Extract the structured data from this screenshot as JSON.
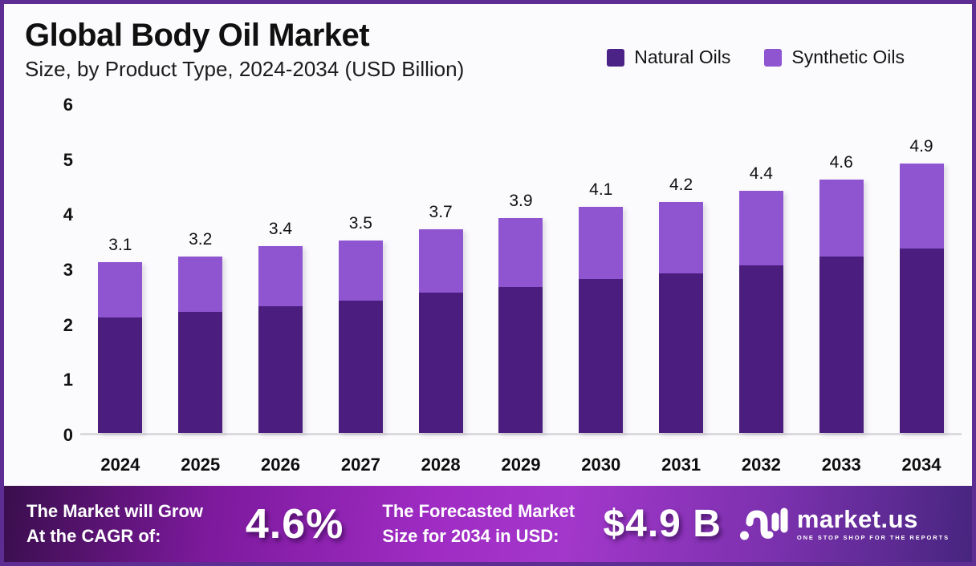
{
  "header": {
    "title": "Global Body Oil Market",
    "subtitle": "Size, by Product Type, 2024-2034 (USD Billion)"
  },
  "legend": {
    "items": [
      {
        "label": "Natural Oils",
        "color": "#4b2286"
      },
      {
        "label": "Synthetic Oils",
        "color": "#8f55d1"
      }
    ]
  },
  "chart_data": {
    "type": "bar",
    "stacked": true,
    "title": "Global Body Oil Market Size, by Product Type, 2024-2034 (USD Billion)",
    "categories": [
      "2024",
      "2025",
      "2026",
      "2027",
      "2028",
      "2029",
      "2030",
      "2031",
      "2032",
      "2033",
      "2034"
    ],
    "series": [
      {
        "name": "Natural Oils",
        "color": "#4a1d7e",
        "values": [
          2.1,
          2.2,
          2.3,
          2.4,
          2.55,
          2.65,
          2.8,
          2.9,
          3.05,
          3.2,
          3.35
        ]
      },
      {
        "name": "Synthetic Oils",
        "color": "#8f55d1",
        "values": [
          1.0,
          1.0,
          1.1,
          1.1,
          1.15,
          1.25,
          1.3,
          1.3,
          1.35,
          1.4,
          1.55
        ]
      }
    ],
    "totals": [
      3.1,
      3.2,
      3.4,
      3.5,
      3.7,
      3.9,
      4.1,
      4.2,
      4.4,
      4.6,
      4.9
    ],
    "total_labels": [
      "3.1",
      "3.2",
      "3.4",
      "3.5",
      "3.7",
      "3.9",
      "4.1",
      "4.2",
      "4.4",
      "4.6",
      "4.9"
    ],
    "xlabel": "",
    "ylabel": "",
    "ylim": [
      0,
      6
    ],
    "yticks": [
      0,
      1,
      2,
      3,
      4,
      5,
      6
    ],
    "grid": false,
    "legend_position": "top-right"
  },
  "footer": {
    "cagr_label_line1": "The Market will Grow",
    "cagr_label_line2": "At the CAGR of:",
    "cagr_value": "4.6%",
    "forecast_label_line1": "The Forecasted Market",
    "forecast_label_line2": "Size for 2034 in USD:",
    "forecast_value": "$4.9 B",
    "brand": {
      "name": "market.us",
      "tagline": "ONE STOP SHOP FOR THE REPORTS"
    }
  },
  "colors": {
    "border": "#5e2d93",
    "background": "#fbfafc",
    "axis_line": "#dcdadf",
    "text": "#111111",
    "natural": "#4a1d7e",
    "synthetic": "#8f55d1"
  }
}
